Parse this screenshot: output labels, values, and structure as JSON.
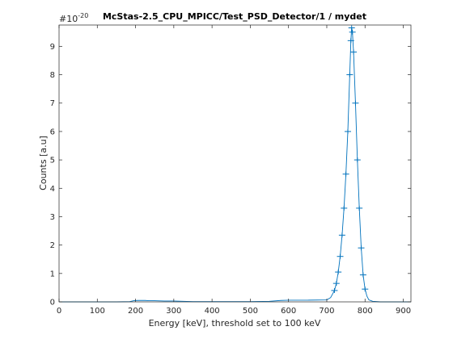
{
  "chart_data": {
    "type": "line",
    "title": "McStas-2.5_CPU_MPICC/Test_PSD_Detector/1 / mydet",
    "xlabel": "Energy [keV], threshold set to 100 keV",
    "ylabel": "Counts [a.u]",
    "y_exponent_base": "#10",
    "y_exponent_power": "-20",
    "xlim": [
      0,
      920
    ],
    "ylim": [
      0,
      9.75
    ],
    "x_ticks": [
      0,
      100,
      200,
      300,
      400,
      500,
      600,
      700,
      800,
      900
    ],
    "x_tick_labels": [
      "0",
      "100",
      "200",
      "300",
      "400",
      "500",
      "600",
      "700",
      "800",
      "900"
    ],
    "y_ticks": [
      0,
      1,
      2,
      3,
      4,
      5,
      6,
      7,
      8,
      9
    ],
    "y_tick_labels": [
      "0",
      "1",
      "2",
      "3",
      "4",
      "5",
      "6",
      "7",
      "8",
      "9"
    ],
    "grid": false,
    "legend": "none",
    "marker": "plus with error bars",
    "colors": {
      "series": "#0072bd",
      "axes": "#262626"
    },
    "series": [
      {
        "x": [
          0,
          50,
          100,
          150,
          185,
          195,
          205,
          215,
          225,
          235,
          250,
          275,
          300,
          350,
          400,
          450,
          500,
          550,
          580,
          600,
          650,
          700,
          710,
          720,
          725,
          730,
          735,
          740,
          745,
          750,
          755,
          760,
          763,
          765,
          767,
          770,
          775,
          780,
          785,
          790,
          795,
          800,
          805,
          810,
          820,
          840,
          880,
          920
        ],
        "y": [
          0,
          0,
          0,
          0,
          0.01,
          0.04,
          0.05,
          0.05,
          0.05,
          0.04,
          0.04,
          0.03,
          0.03,
          0.01,
          0.01,
          0.01,
          0.01,
          0.02,
          0.05,
          0.06,
          0.06,
          0.07,
          0.15,
          0.4,
          0.65,
          1.05,
          1.6,
          2.35,
          3.3,
          4.5,
          6.0,
          8.0,
          9.2,
          9.65,
          9.5,
          8.8,
          7.0,
          5.0,
          3.3,
          1.9,
          0.95,
          0.45,
          0.2,
          0.07,
          0.02,
          0.0,
          0.0,
          0.0
        ]
      }
    ]
  }
}
